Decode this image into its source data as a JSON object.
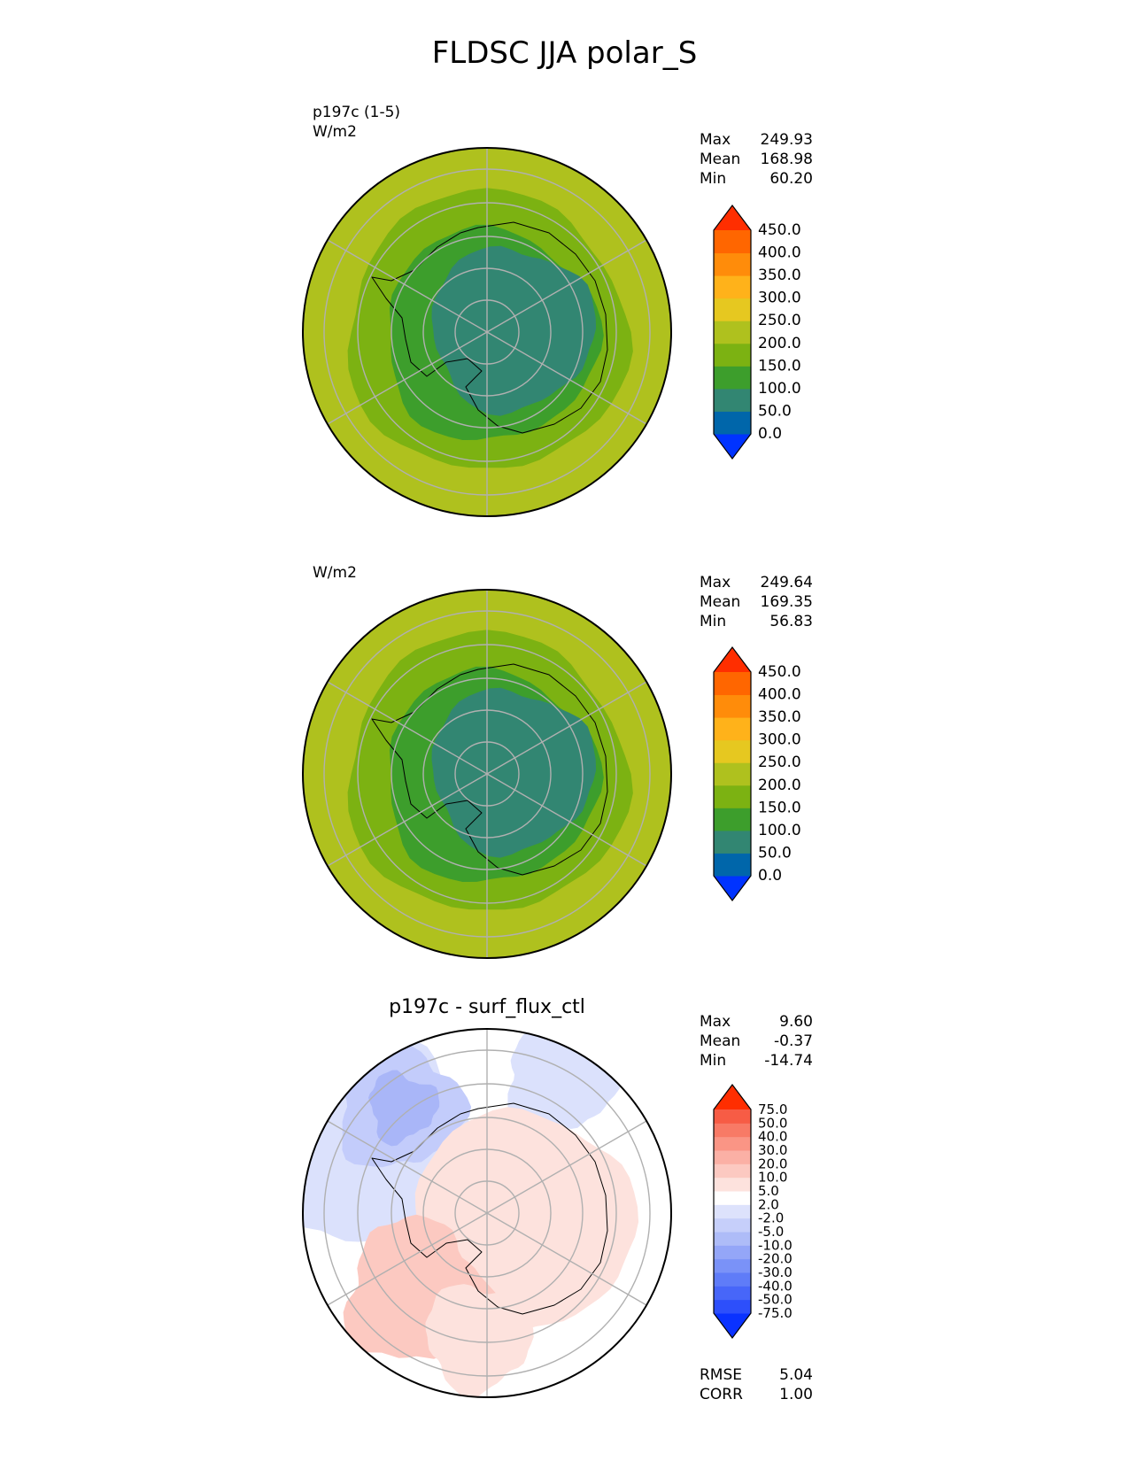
{
  "figure": {
    "title": "FLDSC JJA polar_S"
  },
  "colors": {
    "panel1": {
      "ocean": "#afc11e",
      "ring": "#7cb212",
      "land": "#3d9e2c",
      "plateau": "#328672"
    },
    "panel2": {
      "ocean": "#afc11e",
      "ring": "#7cb212",
      "land": "#3d9e2c",
      "plateau": "#328672"
    },
    "diff": {
      "pos_light": "#fde2dd",
      "pos_mid": "#fcc9c1",
      "neg_light": "#dbe1fc",
      "neg_mid": "#c3ccfb",
      "neg_strong": "#a9b6f8"
    }
  },
  "panels": [
    {
      "title": "",
      "label": "p197c (1-5)",
      "units": "W/m2",
      "stats": [
        {
          "name": "Max",
          "value": "249.93"
        },
        {
          "name": "Mean",
          "value": "168.98"
        },
        {
          "name": "Min",
          "value": "60.20"
        }
      ]
    },
    {
      "title": "",
      "label": "",
      "units": "W/m2",
      "stats": [
        {
          "name": "Max",
          "value": "249.64"
        },
        {
          "name": "Mean",
          "value": "169.35"
        },
        {
          "name": "Min",
          "value": "56.83"
        }
      ]
    },
    {
      "title": "p197c - surf_flux_ctl",
      "label": "",
      "units": "",
      "stats": [
        {
          "name": "Max",
          "value": "9.60"
        },
        {
          "name": "Mean",
          "value": "-0.37"
        },
        {
          "name": "Min",
          "value": "-14.74"
        }
      ],
      "metrics": [
        {
          "name": "RMSE",
          "value": "5.04"
        },
        {
          "name": "CORR",
          "value": "1.00"
        }
      ]
    }
  ],
  "chart_data": [
    {
      "type": "heatmap",
      "title": "",
      "subtitle": "p197c (1-5)",
      "units": "W/m2",
      "projection": "south polar stereographic",
      "stats": {
        "max": 249.93,
        "mean": 168.98,
        "min": 60.2
      },
      "colorbar": {
        "levels": [
          0,
          50,
          100,
          150,
          200,
          250,
          300,
          350,
          400,
          450
        ],
        "tick_labels": [
          "0.0",
          "50.0",
          "100.0",
          "150.0",
          "200.0",
          "250.0",
          "300.0",
          "350.0",
          "400.0",
          "450.0"
        ],
        "colors": [
          "#0033ff",
          "#0066aa",
          "#328672",
          "#3d9e2c",
          "#7cb212",
          "#afc11e",
          "#e6c820",
          "#ffb21a",
          "#ff8c0a",
          "#ff6600",
          "#ff2e00"
        ],
        "extend": "both"
      }
    },
    {
      "type": "heatmap",
      "title": "",
      "subtitle": "",
      "units": "W/m2",
      "projection": "south polar stereographic",
      "stats": {
        "max": 249.64,
        "mean": 169.35,
        "min": 56.83
      },
      "colorbar": {
        "levels": [
          0,
          50,
          100,
          150,
          200,
          250,
          300,
          350,
          400,
          450
        ],
        "tick_labels": [
          "0.0",
          "50.0",
          "100.0",
          "150.0",
          "200.0",
          "250.0",
          "300.0",
          "350.0",
          "400.0",
          "450.0"
        ],
        "colors": [
          "#0033ff",
          "#0066aa",
          "#328672",
          "#3d9e2c",
          "#7cb212",
          "#afc11e",
          "#e6c820",
          "#ffb21a",
          "#ff8c0a",
          "#ff6600",
          "#ff2e00"
        ],
        "extend": "both"
      }
    },
    {
      "type": "heatmap",
      "title": "p197c - surf_flux_ctl",
      "projection": "south polar stereographic",
      "stats": {
        "max": 9.6,
        "mean": -0.37,
        "min": -14.74,
        "rmse": 5.04,
        "corr": 1.0
      },
      "colorbar": {
        "levels": [
          -75,
          -50,
          -40,
          -30,
          -20,
          -10,
          -5,
          -2,
          2,
          5,
          10,
          20,
          30,
          40,
          50,
          75
        ],
        "tick_labels": [
          "-75.0",
          "-50.0",
          "-40.0",
          "-30.0",
          "-20.0",
          "-10.0",
          "-5.0",
          "-2.0",
          "2.0",
          "5.0",
          "10.0",
          "20.0",
          "30.0",
          "40.0",
          "50.0",
          "75.0"
        ],
        "colors": [
          "#0a32ff",
          "#2d4ffb",
          "#4766f9",
          "#5f7cf8",
          "#7a92f8",
          "#94a6f8",
          "#aebcf8",
          "#c6cffa",
          "#dde2fc",
          "#ffffff",
          "#fde2dd",
          "#fcc9c1",
          "#fbb0a5",
          "#fa9585",
          "#f87a66",
          "#f75c45",
          "#ff2e00"
        ],
        "extend": "both"
      }
    }
  ]
}
